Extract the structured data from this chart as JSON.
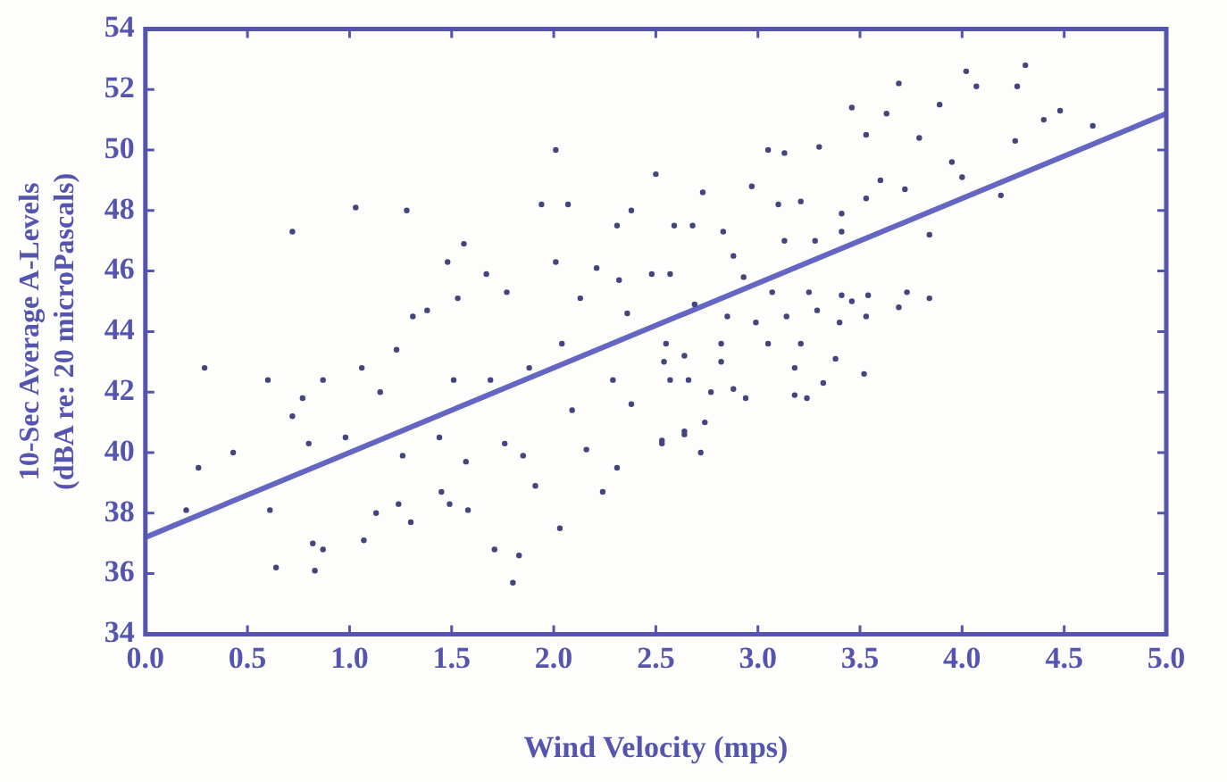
{
  "chart_data": {
    "type": "scatter",
    "xlabel": "Wind Velocity (mps)",
    "ylabel": "10-Sec Average A-Levels\n(dBA re: 20 microPascals)",
    "xlim": [
      0,
      5
    ],
    "ylim": [
      34,
      54
    ],
    "xticks": [
      {
        "value": 0,
        "label": "0.0"
      },
      {
        "value": 0.5,
        "label": "0.5"
      },
      {
        "value": 1,
        "label": "1.0"
      },
      {
        "value": 1.5,
        "label": "1.5"
      },
      {
        "value": 2,
        "label": "2.0"
      },
      {
        "value": 2.5,
        "label": "2.5"
      },
      {
        "value": 3,
        "label": "3.0"
      },
      {
        "value": 3.5,
        "label": "3.5"
      },
      {
        "value": 4,
        "label": "4.0"
      },
      {
        "value": 4.5,
        "label": "4.5"
      },
      {
        "value": 5,
        "label": "5.0"
      }
    ],
    "yticks": [
      34,
      36,
      38,
      40,
      42,
      44,
      46,
      48,
      50,
      52,
      54
    ],
    "grid": false,
    "legend": false,
    "marker": "circle",
    "series": [
      {
        "color": "#45457e",
        "x": [
          0.29,
          0.72,
          1.03,
          1.28,
          2.01,
          2.5,
          0.2,
          0.26,
          0.43,
          0.64,
          0.61,
          0.6,
          0.77,
          0.72,
          0.82,
          0.83,
          0.87,
          0.87,
          0.8,
          0.98,
          1.06,
          1.07,
          1.13,
          1.15,
          1.23,
          1.3,
          1.24,
          1.26,
          1.31,
          1.38,
          1.48,
          1.56,
          1.45,
          1.49,
          1.58,
          1.44,
          1.57,
          1.51,
          1.53,
          1.67,
          1.71,
          1.83,
          1.8,
          1.77,
          1.69,
          1.76,
          1.85,
          1.91,
          2.03,
          1.94,
          2.07,
          2.01,
          1.88,
          2.04,
          2.09,
          2.16,
          2.31,
          2.24,
          2.13,
          2.21,
          2.38,
          2.31,
          2.32,
          2.36,
          2.29,
          2.38,
          2.48,
          2.59,
          2.53,
          2.64,
          2.57,
          2.54,
          4.02,
          4.31,
          4.07,
          4.27,
          3.69,
          3.89,
          4.48,
          4.4,
          4.64,
          4.26,
          4.19,
          3.84,
          4.0,
          3.95,
          3.79,
          3.46,
          3.63,
          3.53,
          3.3,
          3.05,
          3.13,
          2.97,
          2.73,
          3.1,
          3.21,
          3.41,
          3.6,
          3.72,
          3.53,
          3.28,
          3.41,
          3.13,
          2.83,
          2.68,
          2.88,
          2.93,
          3.07,
          3.25,
          3.41,
          3.46,
          3.54,
          3.73,
          3.84,
          3.69,
          3.53,
          3.4,
          3.29,
          3.14,
          2.99,
          2.85,
          2.69,
          2.57,
          2.55,
          2.64,
          2.82,
          3.05,
          3.21,
          3.38,
          3.18,
          3.52,
          3.32,
          3.24,
          3.18,
          2.94,
          2.88,
          2.77,
          2.74,
          2.64,
          2.72,
          2.53,
          2.66,
          2.82
        ],
        "values": [
          42.8,
          47.3,
          48.1,
          48.0,
          50.0,
          49.2,
          38.1,
          39.5,
          40.0,
          36.2,
          38.1,
          42.4,
          41.8,
          41.2,
          37.0,
          36.1,
          36.8,
          42.4,
          40.3,
          40.5,
          42.8,
          37.1,
          38.0,
          42.0,
          43.4,
          37.7,
          38.3,
          39.9,
          44.5,
          44.7,
          46.3,
          46.9,
          38.7,
          38.3,
          38.1,
          40.5,
          39.7,
          42.4,
          45.1,
          45.9,
          36.8,
          36.6,
          35.7,
          45.3,
          42.4,
          40.3,
          39.9,
          38.9,
          37.5,
          48.2,
          48.2,
          46.3,
          42.8,
          43.6,
          41.4,
          40.1,
          39.5,
          38.7,
          45.1,
          46.1,
          48.0,
          47.5,
          45.7,
          44.6,
          42.4,
          41.6,
          45.9,
          47.5,
          40.4,
          40.7,
          42.4,
          43.0,
          52.6,
          52.8,
          52.1,
          52.1,
          52.2,
          51.5,
          51.3,
          51.0,
          50.8,
          50.3,
          48.5,
          47.2,
          49.1,
          49.6,
          50.4,
          51.4,
          51.2,
          50.5,
          50.1,
          50.0,
          49.9,
          48.8,
          48.6,
          48.2,
          48.3,
          47.9,
          49.0,
          48.7,
          48.4,
          47.0,
          47.3,
          47.0,
          47.3,
          47.5,
          46.5,
          45.8,
          45.3,
          45.3,
          45.2,
          45.0,
          45.2,
          45.3,
          45.1,
          44.8,
          44.5,
          44.3,
          44.7,
          44.5,
          44.3,
          44.5,
          44.9,
          45.9,
          43.6,
          43.2,
          43.6,
          43.6,
          43.6,
          43.1,
          42.8,
          42.6,
          42.3,
          41.8,
          41.9,
          41.8,
          42.1,
          42.0,
          41.0,
          40.6,
          40.0,
          40.3,
          42.4,
          43.0
        ]
      },
      {
        "type": "line",
        "color": "#6565c4",
        "x": [
          0,
          5
        ],
        "values": [
          37.2,
          51.2
        ],
        "marker": "none"
      }
    ]
  }
}
